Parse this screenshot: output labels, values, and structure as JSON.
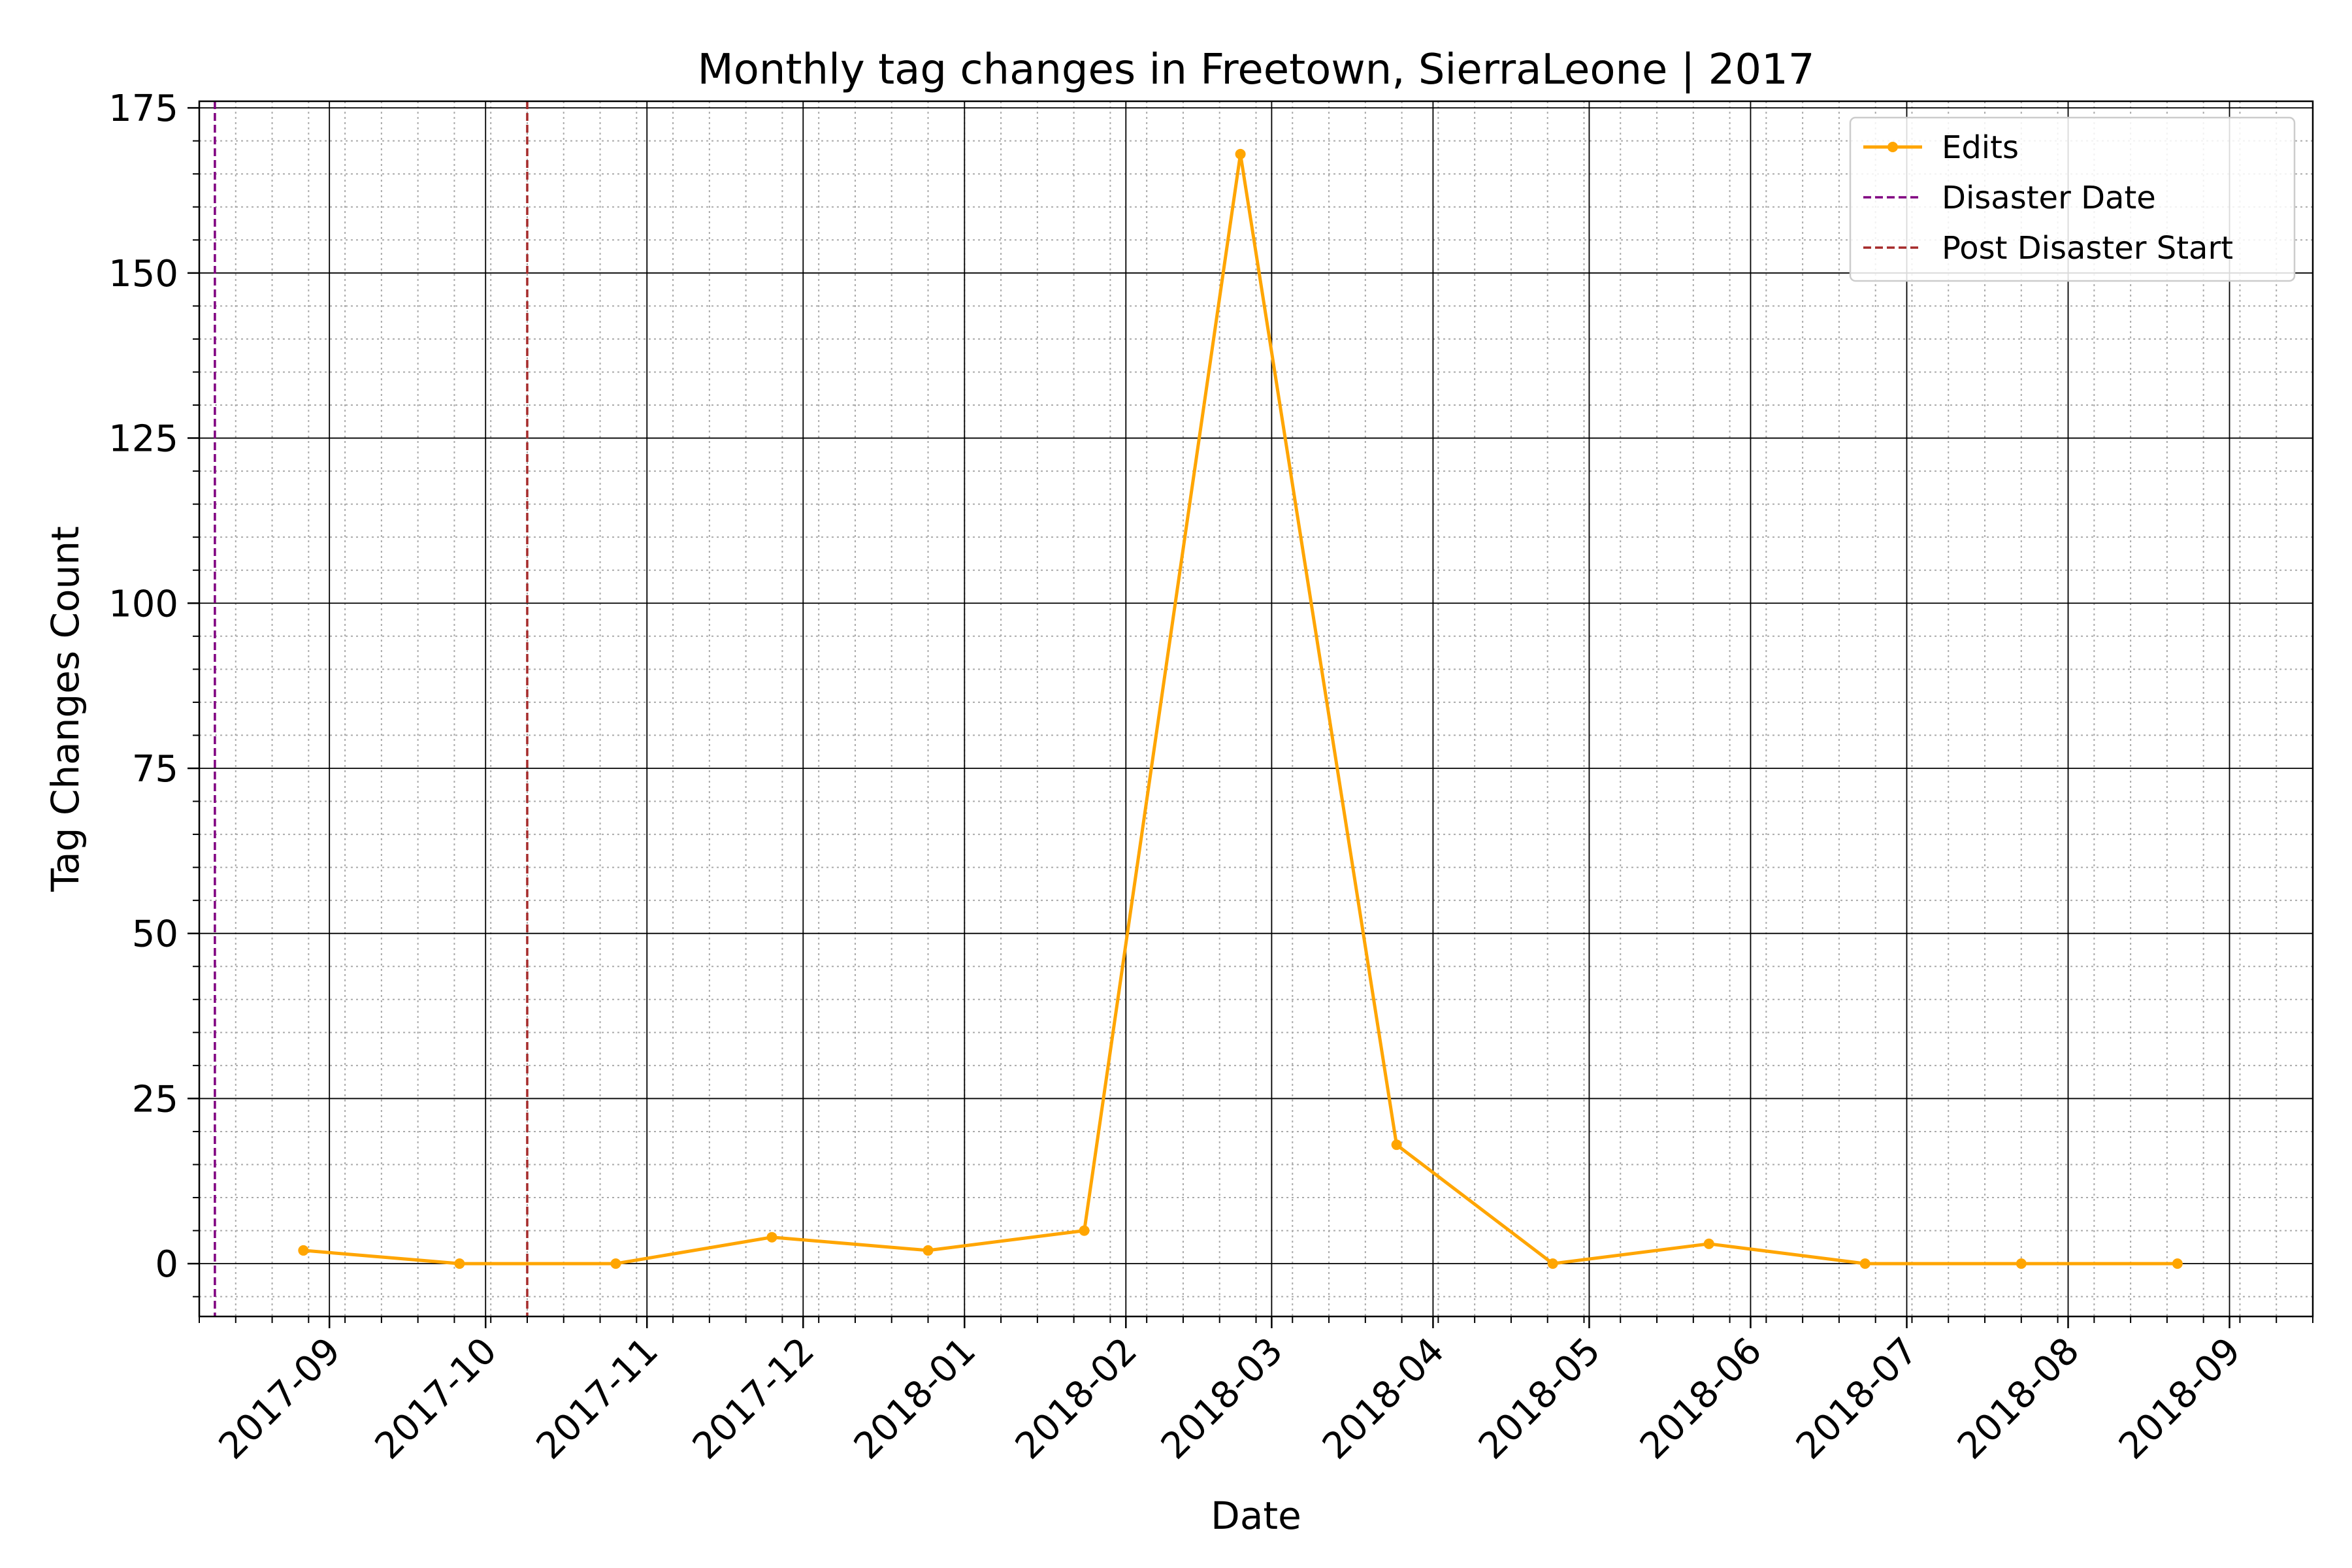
{
  "chart_data": {
    "type": "line",
    "title": "Monthly tag changes in Freetown, SierraLeone | 2017",
    "xlabel": "Date",
    "ylabel": "Tag Changes Count",
    "xlim": [
      "2017-08-07",
      "2018-09-17"
    ],
    "ylim": [
      -8,
      176
    ],
    "y_ticks": [
      0,
      25,
      50,
      75,
      100,
      125,
      150,
      175
    ],
    "x_ticks": [
      "2017-09-01",
      "2017-10-01",
      "2017-11-01",
      "2017-12-01",
      "2018-01-01",
      "2018-02-01",
      "2018-03-01",
      "2018-04-01",
      "2018-05-01",
      "2018-06-01",
      "2018-07-01",
      "2018-08-01",
      "2018-09-01"
    ],
    "x_tick_labels": [
      "2017-09",
      "2017-10",
      "2017-11",
      "2017-12",
      "2018-01",
      "2018-02",
      "2018-03",
      "2018-04",
      "2018-05",
      "2018-06",
      "2018-07",
      "2018-08",
      "2018-09"
    ],
    "grid": "major and minor",
    "legend_position": "top-right",
    "series": [
      {
        "name": "Edits",
        "color": "#FFA500",
        "x": [
          "2017-08-27",
          "2017-09-26",
          "2017-10-26",
          "2017-11-25",
          "2017-12-25",
          "2018-01-24",
          "2018-02-23",
          "2018-03-25",
          "2018-04-24",
          "2018-05-24",
          "2018-06-23",
          "2018-07-23",
          "2018-08-22"
        ],
        "y": [
          2,
          0,
          0,
          4,
          2,
          5,
          168,
          18,
          0,
          3,
          0,
          0,
          0
        ]
      }
    ],
    "vlines": [
      {
        "name": "Disaster Date",
        "x": "2017-08-10",
        "color": "#800080"
      },
      {
        "name": "Post Disaster Start",
        "x": "2017-10-09",
        "color": "#A52A2A"
      }
    ]
  }
}
